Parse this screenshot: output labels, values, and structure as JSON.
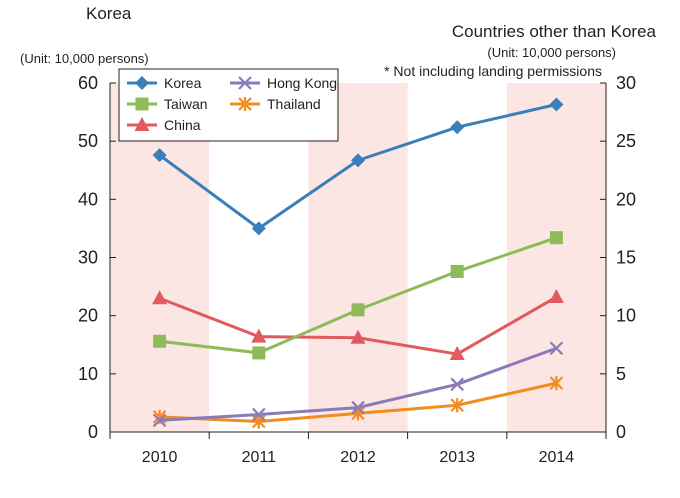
{
  "chart_data": {
    "type": "line",
    "left_axis_title": "Korea",
    "left_axis_unit": "(Unit: 10,000 persons)",
    "right_axis_title": "Countries other than Korea",
    "right_axis_unit": "(Unit: 10,000 persons)",
    "note": "* Not including landing permissions",
    "categories": [
      "2010",
      "2011",
      "2012",
      "2013",
      "2014"
    ],
    "y_left": {
      "min": 0,
      "max": 60,
      "ticks": [
        "0",
        "10",
        "20",
        "30",
        "40",
        "50",
        "60"
      ]
    },
    "y_right": {
      "min": 0,
      "max": 30,
      "ticks": [
        "0",
        "5",
        "10",
        "15",
        "20",
        "25",
        "30"
      ]
    },
    "series": [
      {
        "name": "Korea",
        "axis": "left",
        "color": "#3a7fb8",
        "marker": "diamond",
        "values": [
          47.6,
          35.0,
          46.7,
          52.4,
          56.3
        ]
      },
      {
        "name": "Taiwan",
        "axis": "right",
        "color": "#8fba58",
        "marker": "square",
        "values": [
          7.8,
          6.8,
          10.5,
          13.8,
          16.7
        ]
      },
      {
        "name": "China",
        "axis": "right",
        "color": "#e05a5f",
        "marker": "triangle",
        "values": [
          11.5,
          8.2,
          8.1,
          6.7,
          11.6
        ]
      },
      {
        "name": "Hong Kong",
        "axis": "right",
        "color": "#8b7ab8",
        "marker": "x",
        "values": [
          1.0,
          1.5,
          2.1,
          4.1,
          7.2
        ]
      },
      {
        "name": "Thailand",
        "axis": "right",
        "color": "#f28c1c",
        "marker": "asterisk",
        "values": [
          1.3,
          0.9,
          1.6,
          2.3,
          4.2
        ]
      }
    ],
    "band_color": "#fbe6e4"
  }
}
